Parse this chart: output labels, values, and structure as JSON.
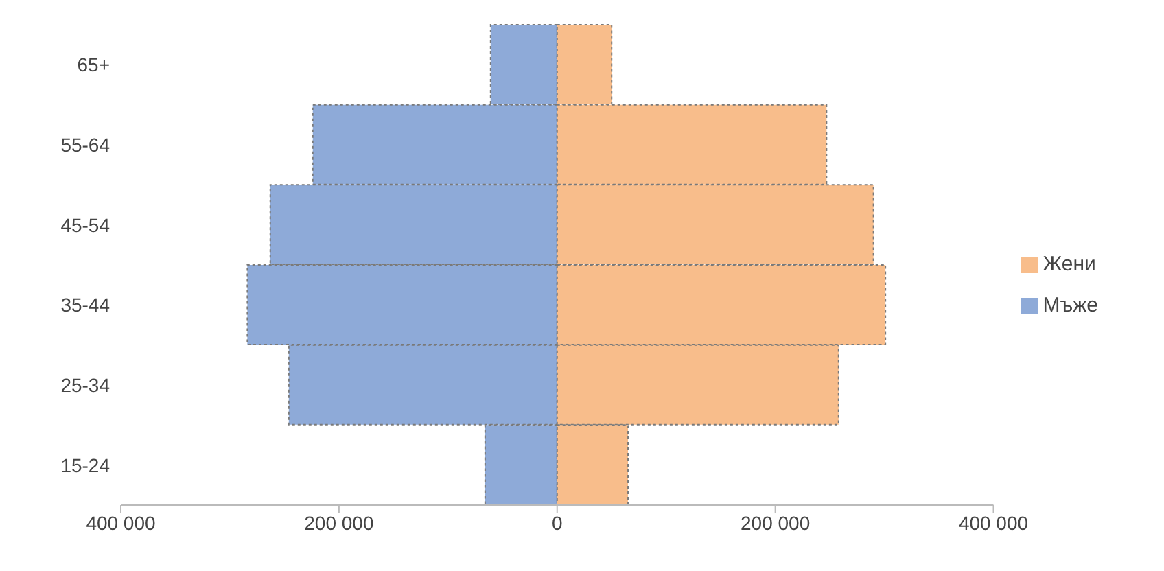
{
  "chart_data": {
    "type": "bar",
    "orientation": "horizontal",
    "stacked": true,
    "categories": [
      "65+",
      "55-64",
      "45-54",
      "35-44",
      "25-34",
      "15-24"
    ],
    "series": [
      {
        "name": "Мъже",
        "color": "#8eaad8",
        "values": [
          -61000,
          -224000,
          -263000,
          -284000,
          -246000,
          -66000
        ]
      },
      {
        "name": "Жени",
        "color": "#f8bd8b",
        "values": [
          50000,
          247000,
          290000,
          301000,
          258000,
          65000
        ]
      }
    ],
    "xlim": [
      -400000,
      400000
    ],
    "xticks": [
      {
        "value": -400000,
        "label": "400 000"
      },
      {
        "value": -200000,
        "label": "200 000"
      },
      0,
      {
        "value": 200000,
        "label": "200 000"
      },
      {
        "value": 400000,
        "label": "400 000"
      }
    ],
    "grid": false,
    "legend": "right"
  }
}
